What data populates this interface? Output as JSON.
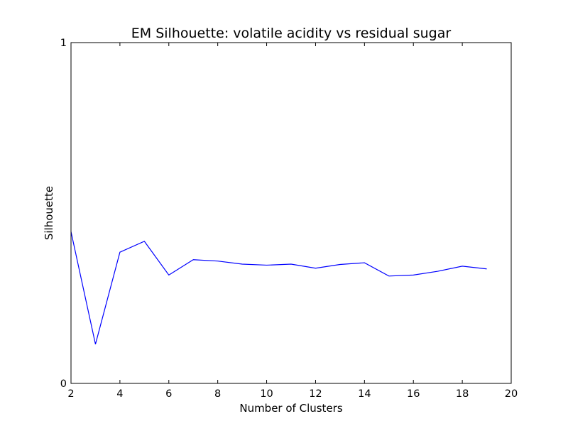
{
  "chart_data": {
    "type": "line",
    "title": "EM Silhouette: volatile acidity vs residual sugar",
    "xlabel": "Number of Clusters",
    "ylabel": "Silhouette",
    "xlim": [
      2,
      20
    ],
    "ylim": [
      0,
      1
    ],
    "xticks": [
      "2",
      "4",
      "6",
      "8",
      "10",
      "12",
      "14",
      "16",
      "18",
      "20"
    ],
    "yticks": [
      "0",
      "1"
    ],
    "grid": false,
    "series": [
      {
        "color": "#0000ff",
        "x": [
          2,
          3,
          4,
          5,
          6,
          7,
          8,
          9,
          10,
          11,
          12,
          13,
          14,
          15,
          16,
          17,
          18,
          19
        ],
        "y": [
          0.445,
          0.115,
          0.385,
          0.417,
          0.318,
          0.363,
          0.359,
          0.35,
          0.347,
          0.35,
          0.338,
          0.349,
          0.354,
          0.315,
          0.318,
          0.329,
          0.344,
          0.336
        ]
      }
    ]
  }
}
